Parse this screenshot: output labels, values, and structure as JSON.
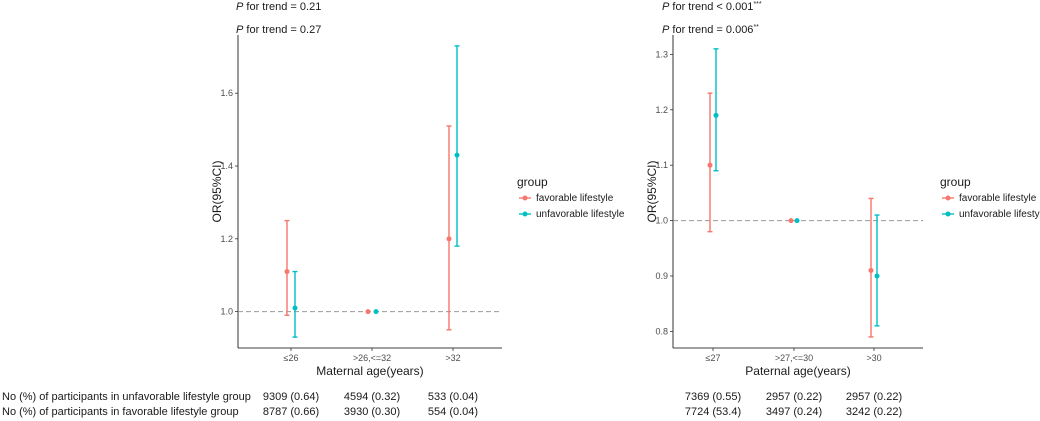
{
  "colors": {
    "favorable": "#F8766D",
    "unfavorable": "#00BFC4",
    "reference_line": "#999999"
  },
  "legend": {
    "title": "group",
    "items": [
      {
        "label": "favorable lifestyle",
        "color": "#F8766D"
      },
      {
        "label": "unfavorable lifestyle",
        "color": "#00BFC4"
      }
    ]
  },
  "table_rows": {
    "unfavorable": "No (%) of participants in unfavorable lifestyle group",
    "favorable": "No (%) of participants in favorable lifestyle group"
  },
  "chart_data": [
    {
      "type": "errorbar",
      "p_trend": [
        {
          "italic": "P",
          "text": " for trend = 0.21",
          "sup": ""
        },
        {
          "italic": "P",
          "text": " for trend = 0.27",
          "sup": ""
        }
      ],
      "xlabel": "Maternal age(years)",
      "ylabel": "OR(95%CI)",
      "categories": [
        "≤26",
        ">26,<=32",
        ">32"
      ],
      "ylim": [
        0.9,
        1.76
      ],
      "yticks": [
        "1.0",
        "1.2",
        "1.4",
        "1.6"
      ],
      "reference": 1.0,
      "series": [
        {
          "name": "favorable lifestyle",
          "or": [
            1.11,
            1.0,
            1.2
          ],
          "lower": [
            0.99,
            1.0,
            0.95
          ],
          "upper": [
            1.25,
            1.0,
            1.51
          ]
        },
        {
          "name": "unfavorable lifestyle",
          "or": [
            1.01,
            1.0,
            1.43
          ],
          "lower": [
            0.93,
            1.0,
            1.18
          ],
          "upper": [
            1.11,
            1.0,
            1.73
          ]
        }
      ],
      "counts_unfavorable": [
        "9309 (0.64)",
        "4594 (0.32)",
        "533 (0.04)"
      ],
      "counts_favorable": [
        "8787 (0.66)",
        "3930 (0.30)",
        "554 (0.04)"
      ]
    },
    {
      "type": "errorbar",
      "p_trend": [
        {
          "italic": "P",
          "text": " for trend < 0.001",
          "sup": "***"
        },
        {
          "italic": "P",
          "text": " for trend = 0.006",
          "sup": "**"
        }
      ],
      "xlabel": "Paternal age(years)",
      "ylabel": "OR(95%CI)",
      "categories": [
        "≤27",
        ">27,<=30",
        ">30"
      ],
      "ylim": [
        0.77,
        1.335
      ],
      "yticks": [
        "0.8",
        "0.9",
        "1.0",
        "1.1",
        "1.2",
        "1.3"
      ],
      "reference": 1.0,
      "series": [
        {
          "name": "favorable lifestyle",
          "or": [
            1.1,
            1.0,
            0.91
          ],
          "lower": [
            0.98,
            1.0,
            0.79
          ],
          "upper": [
            1.23,
            1.0,
            1.04
          ]
        },
        {
          "name": "unfavorable lifestyle",
          "or": [
            1.19,
            1.0,
            0.9
          ],
          "lower": [
            1.09,
            1.0,
            0.81
          ],
          "upper": [
            1.31,
            1.0,
            1.01
          ]
        }
      ],
      "counts_unfavorable": [
        "7369 (0.55)",
        "2957 (0.22)",
        "2957 (0.22)"
      ],
      "counts_favorable": [
        "7724 (53.4)",
        "3497 (0.24)",
        "3242 (0.22)"
      ]
    }
  ]
}
